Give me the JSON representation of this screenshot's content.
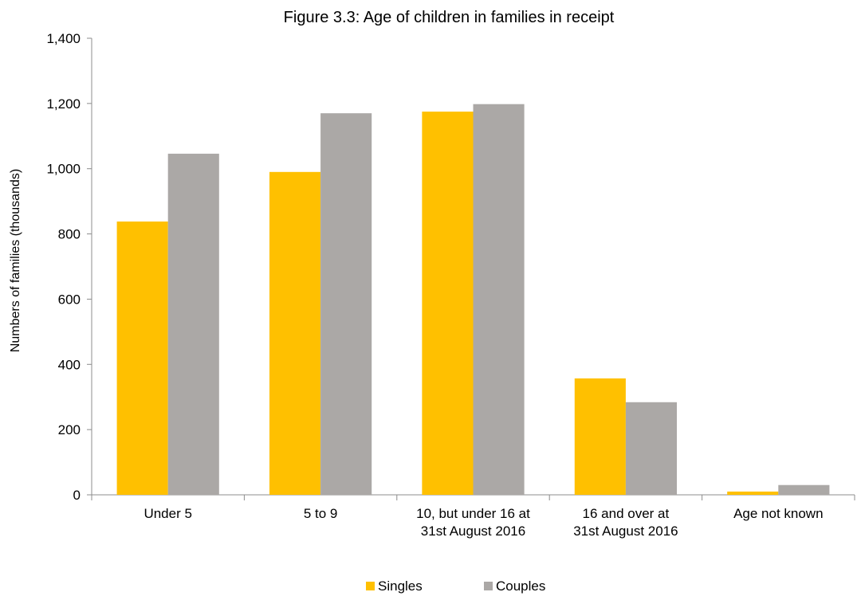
{
  "chart_data": {
    "type": "bar",
    "title": "Figure 3.3: Age of children in families in receipt",
    "xlabel": "",
    "ylabel": "Numbers of families (thousands)",
    "ylim": [
      0,
      1400
    ],
    "yticks": [
      {
        "value": 0,
        "label": "0"
      },
      {
        "value": 200,
        "label": "200"
      },
      {
        "value": 400,
        "label": "400"
      },
      {
        "value": 600,
        "label": "600"
      },
      {
        "value": 800,
        "label": "800"
      },
      {
        "value": 1000,
        "label": "1,000"
      },
      {
        "value": 1200,
        "label": "1,200"
      },
      {
        "value": 1400,
        "label": "1,400"
      }
    ],
    "categories": [
      "Under 5",
      "5 to 9",
      "10, but under 16 at 31st August 2016",
      "16 and over at 31st August 2016",
      "Age not known"
    ],
    "category_lines": [
      [
        "Under 5"
      ],
      [
        "5 to 9"
      ],
      [
        "10, but under 16 at",
        "31st August 2016"
      ],
      [
        "16 and over at",
        "31st August 2016"
      ],
      [
        "Age not known"
      ]
    ],
    "series": [
      {
        "name": "Singles",
        "color": "#FFC000",
        "values": [
          838,
          990,
          1175,
          357,
          10
        ]
      },
      {
        "name": "Couples",
        "color": "#ABA8A6",
        "values": [
          1046,
          1170,
          1198,
          284,
          30
        ]
      }
    ],
    "grid": false,
    "legend_position": "bottom"
  }
}
